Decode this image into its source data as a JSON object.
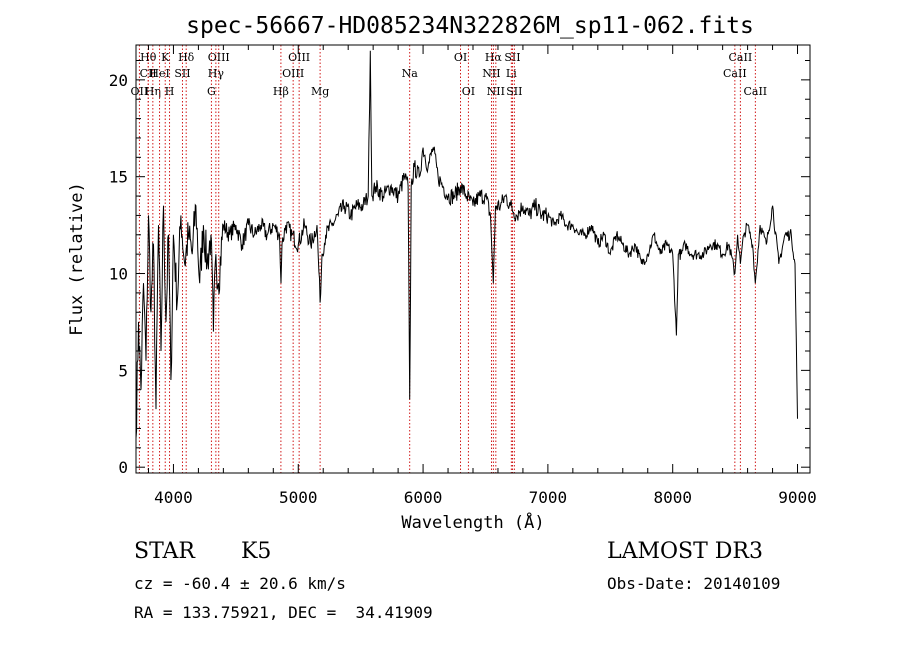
{
  "chart_data": {
    "type": "line",
    "title": "spec-56667-HD085234N322826M_sp11-062.fits",
    "xlabel": "Wavelength (Å)",
    "ylabel": "Flux (relative)",
    "xlim": [
      3700,
      9100
    ],
    "ylim": [
      -0.3,
      21.8
    ],
    "xticks": [
      4000,
      5000,
      6000,
      7000,
      8000,
      9000
    ],
    "xtick_labels": [
      "4000",
      "5000",
      "6000",
      "7000",
      "8000",
      "9000"
    ],
    "yticks": [
      0,
      5,
      10,
      15,
      20
    ],
    "ytick_labels": [
      "0",
      "5",
      "10",
      "15",
      "20"
    ],
    "grid": false,
    "series": [
      {
        "name": "flux",
        "x": [
          3700,
          3720,
          3740,
          3760,
          3780,
          3800,
          3820,
          3840,
          3860,
          3880,
          3900,
          3920,
          3940,
          3960,
          3980,
          4000,
          4030,
          4060,
          4090,
          4120,
          4150,
          4180,
          4210,
          4240,
          4270,
          4300,
          4320,
          4340,
          4360,
          4400,
          4450,
          4500,
          4550,
          4600,
          4650,
          4700,
          4750,
          4800,
          4850,
          4862,
          4870,
          4900,
          4950,
          5000,
          5050,
          5100,
          5150,
          5175,
          5190,
          5220,
          5270,
          5320,
          5370,
          5420,
          5470,
          5520,
          5560,
          5577,
          5590,
          5620,
          5680,
          5740,
          5800,
          5850,
          5880,
          5893,
          5905,
          5930,
          5970,
          6000,
          6040,
          6080,
          6120,
          6160,
          6200,
          6250,
          6300,
          6350,
          6400,
          6450,
          6500,
          6540,
          6563,
          6580,
          6620,
          6660,
          6700,
          6750,
          6800,
          6850,
          6900,
          6950,
          7000,
          7050,
          7100,
          7150,
          7200,
          7250,
          7300,
          7350,
          7400,
          7450,
          7500,
          7550,
          7600,
          7650,
          7700,
          7750,
          7800,
          7850,
          7900,
          7950,
          8000,
          8030,
          8045,
          8070,
          8100,
          8150,
          8200,
          8250,
          8300,
          8350,
          8400,
          8450,
          8498,
          8520,
          8542,
          8570,
          8600,
          8640,
          8662,
          8700,
          8750,
          8800,
          8850,
          8900,
          8950,
          8980,
          9000
        ],
        "y": [
          1.5,
          7.5,
          4.0,
          9.5,
          5.5,
          13.0,
          8.0,
          11.5,
          3.0,
          12.5,
          6.0,
          13.5,
          7.5,
          12.0,
          4.5,
          12.0,
          8.5,
          13.0,
          10.5,
          12.0,
          11.0,
          13.5,
          9.5,
          12.5,
          10.5,
          12.0,
          7.0,
          11.0,
          9.5,
          12.5,
          12.0,
          12.5,
          11.5,
          12.5,
          12.0,
          12.5,
          12.0,
          12.5,
          12.0,
          9.5,
          11.5,
          12.5,
          12.0,
          11.5,
          12.5,
          11.5,
          12.5,
          8.5,
          11.0,
          12.0,
          12.5,
          13.0,
          13.5,
          13.0,
          13.5,
          13.5,
          14.0,
          21.5,
          14.0,
          14.5,
          14.0,
          14.5,
          14.0,
          15.0,
          14.5,
          3.5,
          14.5,
          15.5,
          15.0,
          16.5,
          15.5,
          16.5,
          15.0,
          14.5,
          14.0,
          14.0,
          14.5,
          14.0,
          13.5,
          14.0,
          14.0,
          13.0,
          9.5,
          13.5,
          13.5,
          14.0,
          13.5,
          13.0,
          13.5,
          13.0,
          13.5,
          13.0,
          13.0,
          12.5,
          13.0,
          12.5,
          12.5,
          12.0,
          12.0,
          12.5,
          11.5,
          12.0,
          11.0,
          12.0,
          11.5,
          11.0,
          11.5,
          10.5,
          11.0,
          12.0,
          11.0,
          11.5,
          11.0,
          6.8,
          11.0,
          11.0,
          11.5,
          11.0,
          11.0,
          11.0,
          11.5,
          11.5,
          11.0,
          11.5,
          10.0,
          12.0,
          10.5,
          12.0,
          12.5,
          11.5,
          9.5,
          12.5,
          11.5,
          13.5,
          10.5,
          12.0,
          12.0,
          10.5,
          2.5
        ]
      }
    ],
    "lines": [
      {
        "name": "Hθ",
        "x": 3798,
        "row": 0
      },
      {
        "name": "CII",
        "x": 3798,
        "row": 1
      },
      {
        "name": "OII",
        "x": 3727,
        "row": 2
      },
      {
        "name": "Hη",
        "x": 3835,
        "row": 2
      },
      {
        "name": "HeI",
        "x": 3889,
        "row": 1
      },
      {
        "name": "K",
        "x": 3934,
        "row": 0
      },
      {
        "name": "H",
        "x": 3969,
        "row": 2
      },
      {
        "name": "SII",
        "x": 4072,
        "row": 1
      },
      {
        "name": "Hδ",
        "x": 4102,
        "row": 0
      },
      {
        "name": "OIII",
        "x": 4363,
        "row": 0
      },
      {
        "name": "Hγ",
        "x": 4340,
        "row": 1
      },
      {
        "name": "G",
        "x": 4304,
        "row": 2
      },
      {
        "name": "Hβ",
        "x": 4861,
        "row": 2
      },
      {
        "name": "OIII",
        "x": 4959,
        "row": 1
      },
      {
        "name": "OIII",
        "x": 5007,
        "row": 0
      },
      {
        "name": "Mg",
        "x": 5175,
        "row": 2
      },
      {
        "name": "Na",
        "x": 5893,
        "row": 1
      },
      {
        "name": "OI",
        "x": 6300,
        "row": 0
      },
      {
        "name": "OI",
        "x": 6363,
        "row": 2
      },
      {
        "name": "Hα",
        "x": 6563,
        "row": 0
      },
      {
        "name": "NII",
        "x": 6548,
        "row": 1
      },
      {
        "name": "NII",
        "x": 6583,
        "row": 2
      },
      {
        "name": "SII",
        "x": 6716,
        "row": 0
      },
      {
        "name": "Li",
        "x": 6707,
        "row": 1
      },
      {
        "name": "SII",
        "x": 6731,
        "row": 2
      },
      {
        "name": "CaII",
        "x": 8542,
        "row": 0
      },
      {
        "name": "CaII",
        "x": 8498,
        "row": 1
      },
      {
        "name": "CaII",
        "x": 8662,
        "row": 2
      }
    ]
  },
  "info": {
    "object_class": "STAR",
    "subclass": "K5",
    "survey": "LAMOST DR3",
    "redshift": "cz = -60.4 ± 20.6 km/s",
    "obs_date": "Obs-Date: 20140109",
    "coords": "RA = 133.75921, DEC =  34.41909"
  }
}
